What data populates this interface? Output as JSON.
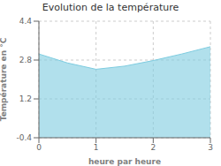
{
  "chart_data": {
    "type": "area",
    "title": "Evolution de la température",
    "xlabel": "heure par heure",
    "ylabel": "Température en °C",
    "x": [
      0,
      0.5,
      1.0,
      1.5,
      2.0,
      2.5,
      3.0
    ],
    "values": [
      3.05,
      2.68,
      2.42,
      2.55,
      2.78,
      3.05,
      3.35
    ],
    "xlim": [
      0,
      3
    ],
    "ylim": [
      -0.4,
      4.4
    ],
    "xticks": [
      0,
      1,
      2,
      3
    ],
    "yticks": [
      -0.4,
      1.2,
      2.8,
      4.4
    ],
    "color": "#7dcce0",
    "grid": true
  }
}
